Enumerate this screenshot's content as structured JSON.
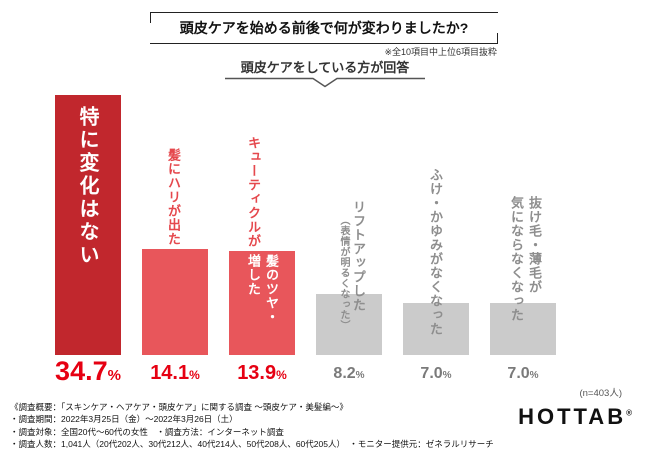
{
  "header": {
    "title": "頭皮ケアを始める前後で何が変わりましたか?",
    "note": "※全10項目中上位6項目抜粋",
    "subtitle": "頭皮ケアをしている方が回答"
  },
  "chart_data": {
    "type": "bar",
    "title": "頭皮ケアを始める前後で何が変わりましたか?",
    "subtitle": "頭皮ケアをしている方が回答",
    "unit": "%",
    "categories": [
      "特に変化はない",
      "髪にハリが出た",
      "髪のツヤ・キューティクルが増した",
      "リフトアップした（表情が明るくなった）",
      "ふけ・かゆみがなくなった",
      "抜け毛・薄毛が気にならなくなった"
    ],
    "values": [
      34.7,
      14.1,
      13.9,
      8.2,
      7.0,
      7.0
    ],
    "ylim": [
      0,
      40
    ],
    "grid": false,
    "legend": "none",
    "bar_colors": [
      "#c1272d",
      "#e8565b",
      "#e8565b",
      "#cbcbcb",
      "#cbcbcb",
      "#cbcbcb"
    ],
    "sample_note": "(n=403人)",
    "bars": [
      {
        "label": "特に変化はない",
        "value": "34.7",
        "unit": "%"
      },
      {
        "label": "髪にハリが出た",
        "value": "14.1",
        "unit": "%"
      },
      {
        "label": "髪のツヤ・キューティクルが増した",
        "label_part1": "髪のツヤ・",
        "label_part2": "キューティクルが",
        "label_part3": "増した",
        "value": "13.9",
        "unit": "%"
      },
      {
        "label": "リフトアップした（表情が明るくなった）",
        "label_main": "リフトアップした",
        "label_note": "（表情が明るくなった）",
        "value": "8.2",
        "unit": "%"
      },
      {
        "label": "ふけ・かゆみがなくなった",
        "value": "7.0",
        "unit": "%"
      },
      {
        "label": "抜け毛・薄毛が気にならなくなった",
        "label_line1": "抜け毛・薄毛が",
        "label_line2": "気にならなくなった",
        "value": "7.0",
        "unit": "%"
      }
    ]
  },
  "footer": {
    "lines": [
      "《調査概要：「スキンケア・ヘアケア・頭皮ケア」に関する調査 〜頭皮ケア・美髪編〜》",
      "・調査期間：2022年3月25日（金）〜2022年3月26日（土）",
      "・調査対象：全国20代〜60代の女性　・調査方法：インターネット調査",
      "・調査人数：1,041人（20代202人、30代212人、40代214人、50代208人、60代205人）　・モニター提供元：ゼネラルリサーチ"
    ],
    "logo": "HOTTAB",
    "logo_mark": "®"
  },
  "colors": {
    "bar_dark_red": "#c1272d",
    "bar_red": "#e8565b",
    "bar_gray": "#cbcbcb",
    "percent_red": "#e60012",
    "percent_gray": "#7a7a7a",
    "label_red": "#e5484d",
    "label_gray": "#8e8e8e"
  }
}
